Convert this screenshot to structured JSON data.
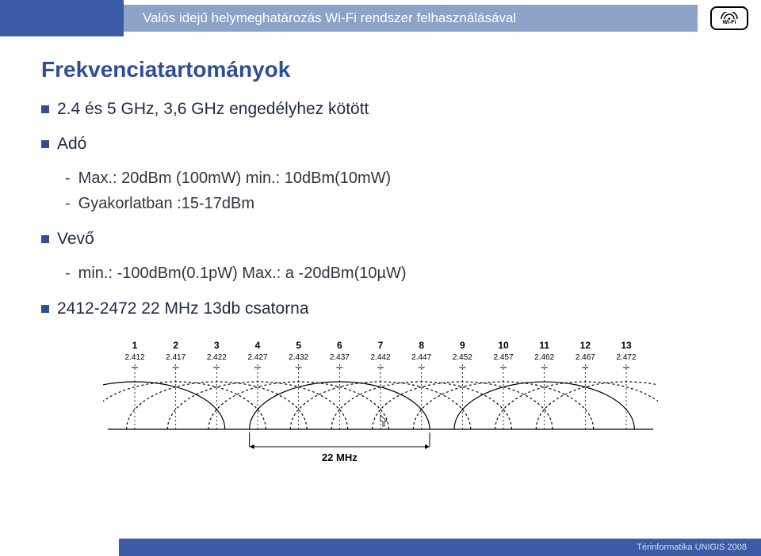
{
  "header": {
    "title": "Valós idejű helymeghatározás Wi-Fi rendszer felhasználásával",
    "logo_label": "Wi-Fi"
  },
  "slide": {
    "title": "Frekvenciatartományok",
    "line1": "2.4 és 5 GHz, 3,6 GHz engedélyhez kötött",
    "ado_label": "Adó",
    "ado_sub1": "Max.: 20dBm (100mW) min.: 10dBm(10mW)",
    "ado_sub2": "Gyakorlatban :15-17dBm",
    "vevo_label": "Vevő",
    "vevo_sub1": "min.: -100dBm(0.1pW) Max.: a -20dBm(10µW)",
    "channels_label": "2412-2472  22 MHz 13db csatorna"
  },
  "footer": {
    "text": "Térinformatika  UNIGIS 2008"
  },
  "diagram": {
    "width_label": "22 MHz",
    "channels": [
      {
        "n": "1",
        "f": "2.412"
      },
      {
        "n": "2",
        "f": "2.417"
      },
      {
        "n": "3",
        "f": "2.422"
      },
      {
        "n": "4",
        "f": "2.427"
      },
      {
        "n": "5",
        "f": "2.432"
      },
      {
        "n": "6",
        "f": "2.437"
      },
      {
        "n": "7",
        "f": "2.442"
      },
      {
        "n": "8",
        "f": "2.447"
      },
      {
        "n": "9",
        "f": "2.452"
      },
      {
        "n": "10",
        "f": "2.457"
      },
      {
        "n": "11",
        "f": "2.462"
      },
      {
        "n": "12",
        "f": "2.467"
      },
      {
        "n": "13",
        "f": "2.472"
      }
    ],
    "colors": {
      "solid": "#000000",
      "dashed": "#000000",
      "text": "#000000",
      "bg": "#ffffff"
    },
    "stroke_width": 1.2,
    "tick_fontsize": 12,
    "freq_fontsize": 10
  }
}
